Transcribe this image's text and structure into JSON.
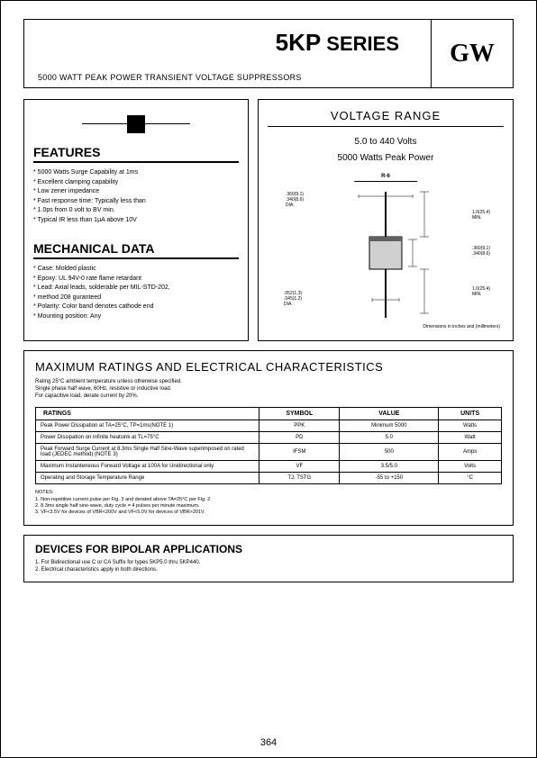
{
  "header": {
    "series_prefix": "5KP",
    "series_suffix": " SERIES",
    "subtitle": "5000 WATT PEAK POWER TRANSIENT VOLTAGE SUPPRESSORS",
    "logo": "GW"
  },
  "features": {
    "title": "FEATURES",
    "items": [
      "5000 Watts Surge Capability at 1ms",
      "Excellent clamping capability",
      "Low zener impedance",
      "Fast response time: Typically less than",
      "  1.0ps from 0 volt to BV min.",
      "Typical IR less than 1µA above 10V"
    ]
  },
  "mechanical": {
    "title": "MECHANICAL DATA",
    "items": [
      "Case: Molded plastic",
      "Epoxy: UL 94V-0 rate flame retardant",
      "Lead: Axial leads, solderable per MIL-STD-202,",
      "  method 208 guranteed",
      "Polarity: Color band denotes cathode end",
      "Mounting position: Any"
    ]
  },
  "voltage": {
    "title": "VOLTAGE RANGE",
    "range": "5.0 to 440 Volts",
    "power": "5000 Watts Peak Power"
  },
  "package": {
    "label": "R-6",
    "dim_dia_top": ".360(9.1)\n.340(8.6)\nDIA.",
    "dim_lead_top": "1.0(25.4)\nMIN.",
    "dim_body": ".360(9.1)\n.340(8.6)",
    "dim_lead_dia": ".052(1.3)\n.045(1.2)\nDIA.",
    "dim_lead_bot": "1.0(25.4)\nMIN.",
    "note": "Dimensions in inches and (millimeters)"
  },
  "ratings": {
    "title": "MAXIMUM RATINGS AND ELECTRICAL CHARACTERISTICS",
    "intro": "Rating 25°C ambient temperature unless otherwise specified.\nSingle phase half wave, 60Hz, resistive or inductive load.\nFor capacitive load, derate current by 20%.",
    "headers": [
      "RATINGS",
      "SYMBOL",
      "VALUE",
      "UNITS"
    ],
    "rows": [
      [
        "Peak Power Dissipation at TA=25°C, TP=1ms(NOTE 1)",
        "PPK",
        "Minimum 5000",
        "Watts"
      ],
      [
        "Power Dissipation on infinite heatsink at TL=75°C",
        "PD",
        "5.0",
        "Watt"
      ],
      [
        "Peak Forward Surge Current at 8.3ms Single Half Sine-Wave superimposed on rated load (JEDEC method) (NOTE 3)",
        "IFSM",
        "500",
        "Amps"
      ],
      [
        "Maximum Instanteneous Forward Voltage at 100A for Unidirectional only",
        "VF",
        "3.5/5.0",
        "Volts"
      ],
      [
        "Operating and Storage Temperature Range",
        "TJ, TSTG",
        "-55 to +150",
        "°C"
      ]
    ],
    "notes_label": "NOTES:",
    "notes": [
      "1. Non-repetitive current pulse per Fig. 3 and derated above TA=25°C per Fig. 2.",
      "2. 8.3ms single half sine-wave, duty cycle = 4 pulses per minute maximum.",
      "3. VF<3.5V for devices of VBR<200V and VF<5.0V for devices of VBR>201V."
    ]
  },
  "bipolar": {
    "title": "DEVICES FOR BIPOLAR APPLICATIONS",
    "items": [
      "1. For Bidirectional use C or CA Suffix for types 5KP5.0 thru 5KP440.",
      "2. Electrical characteristics apply in both directions."
    ]
  },
  "page_number": "364",
  "colors": {
    "text": "#000000",
    "border": "#000000",
    "background": "#ffffff"
  }
}
